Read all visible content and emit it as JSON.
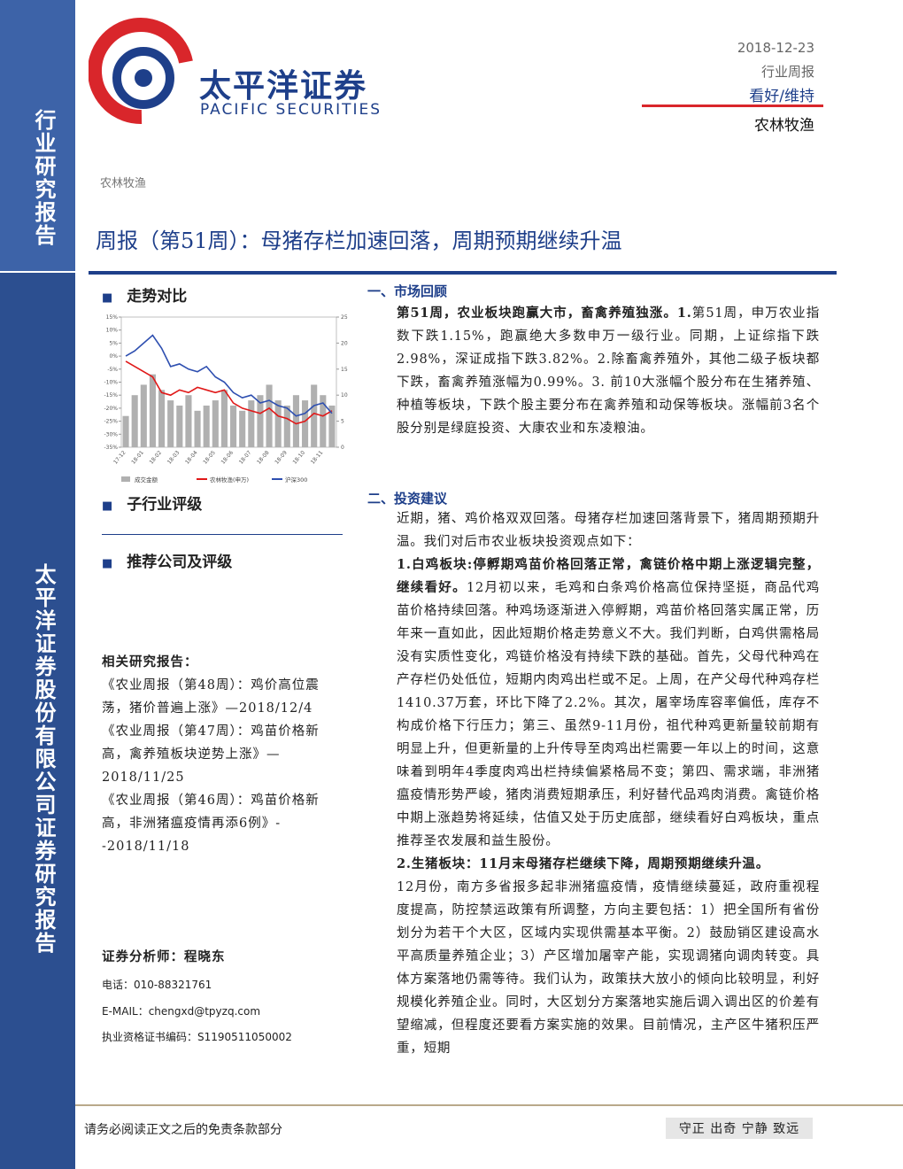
{
  "header": {
    "logo_cn": "太平洋证券",
    "logo_en": "PACIFIC SECURITIES",
    "date": "2018-12-23",
    "report_type": "行业周报",
    "rating": "看好/维持",
    "sector": "农林牧渔"
  },
  "sidebar": {
    "top": "行业研究报告",
    "bottom": "太平洋证券股份有限公司证券研究报告"
  },
  "breadcrumb": "农林牧渔",
  "title": "周报（第51周）：母猪存栏加速回落，周期预期继续升温",
  "left": {
    "trend_heading": "走势对比",
    "sub_industry_heading": "子行业评级",
    "recommend_heading": "推荐公司及评级",
    "related": {
      "heading": "相关研究报告：",
      "items": [
        "《农业周报（第48周）：鸡价高位震荡，猪价普遍上涨》—2018/12/4",
        "《农业周报（第47周）：鸡苗价格新高，禽养殖板块逆势上涨》—2018/11/25",
        "《农业周报（第46周）：鸡苗价格新高，非洲猪瘟疫情再添6例》--2018/11/18"
      ]
    },
    "analyst": {
      "label": "证券分析师：程晓东",
      "phone": "电话：010-88321761",
      "email": "E-MAIL：chengxd@tpyzq.com",
      "cert": "执业资格证书编码：S1190511050002"
    }
  },
  "chart_data": {
    "type": "line",
    "categories": [
      "17-12",
      null,
      "18-01",
      null,
      "18-02",
      null,
      "18-03",
      null,
      "18-04",
      null,
      "18-05",
      null,
      "18-06",
      null,
      "18-07",
      null,
      "18-08",
      null,
      "18-09",
      null,
      "18-10",
      null,
      "18-11",
      null
    ],
    "series": [
      {
        "name": "成交金额",
        "type": "bar",
        "axis": "y2",
        "color": "#b0b0b0",
        "values": [
          6,
          10,
          12,
          14,
          11,
          9,
          8,
          10,
          7,
          8,
          9,
          11,
          8,
          7,
          9,
          10,
          12,
          9,
          8,
          10,
          9,
          12,
          10,
          8
        ]
      },
      {
        "name": "农林牧渔(申万)",
        "color": "#e01818",
        "values": [
          -2,
          -4,
          -6,
          -8,
          -14,
          -15,
          -13,
          -14,
          -12,
          -13,
          -14,
          -13,
          -18,
          -20,
          -21,
          -22,
          -20,
          -23,
          -24,
          -26,
          -25,
          -22,
          -23,
          -21
        ]
      },
      {
        "name": "沪深300",
        "color": "#2e4fb0",
        "values": [
          0,
          2,
          5,
          8,
          3,
          -4,
          -3,
          -5,
          -6,
          -4,
          -8,
          -10,
          -14,
          -16,
          -15,
          -18,
          -17,
          -19,
          -20,
          -23,
          -22,
          -19,
          -18,
          -22
        ]
      }
    ],
    "ylim": [
      -35,
      15
    ],
    "yticks": [
      {
        "value": 15,
        "label": "15%"
      },
      {
        "value": 10,
        "label": "10%"
      },
      {
        "value": 5,
        "label": "5%"
      },
      {
        "value": 0,
        "label": "0%"
      },
      {
        "value": -5,
        "label": "-5%"
      },
      {
        "value": -10,
        "label": "-10%"
      },
      {
        "value": -15,
        "label": "-15%"
      },
      {
        "value": -20,
        "label": "-20%"
      },
      {
        "value": -25,
        "label": "-25%"
      },
      {
        "value": -30,
        "label": "-30%"
      },
      {
        "value": -35,
        "label": "-35%"
      }
    ],
    "y2lim": [
      0,
      25
    ],
    "y2ticks": [
      0,
      5,
      10,
      15,
      20,
      25
    ],
    "legend": "bottom"
  },
  "sections": [
    {
      "heading": "一、市场回顾",
      "paragraphs": [
        {
          "bold": "第51周，农业板块跑赢大市，畜禽养殖独涨。1.",
          "text": "第51周，申万农业指数下跌1.15%，跑赢绝大多数申万一级行业。同期，上证综指下跌2.98%，深证成指下跌3.82%。2.除畜禽养殖外，其他二级子板块都下跌，畜禽养殖涨幅为0.99%。3. 前10大涨幅个股分布在生猪养殖、种植等板块，下跌个股主要分布在禽养殖和动保等板块。涨幅前3名个股分别是绿庭投资、大康农业和东凌粮油。"
        }
      ]
    },
    {
      "heading": "二、投资建议",
      "intro": "近期，猪、鸡价格双双回落。母猪存栏加速回落背景下，猪周期预期升温。我们对后市农业板块投资观点如下：",
      "paragraphs": [
        {
          "bold": "1.白鸡板块:停孵期鸡苗价格回落正常，禽链价格中期上涨逻辑完整，继续看好。",
          "text": "12月初以来，毛鸡和白条鸡价格高位保持坚挺，商品代鸡苗价格持续回落。种鸡场逐渐进入停孵期，鸡苗价格回落实属正常，历年来一直如此，因此短期价格走势意义不大。我们判断，白鸡供需格局没有实质性变化，鸡链价格没有持续下跌的基础。首先，父母代种鸡在产存栏仍处低位，短期内肉鸡出栏或不足。上周，在产父母代种鸡存栏1410.37万套，环比下降了2.2%。其次，屠宰场库容率偏低，库存不构成价格下行压力；第三、虽然9-11月份，祖代种鸡更新量较前期有明显上升，但更新量的上升传导至肉鸡出栏需要一年以上的时间，这意味着到明年4季度肉鸡出栏持续偏紧格局不变；第四、需求端，非洲猪瘟疫情形势严峻，猪肉消费短期承压，利好替代品鸡肉消费。禽链价格中期上涨趋势将延续，估值又处于历史底部，继续看好白鸡板块，重点推荐圣农发展和益生股份。"
        },
        {
          "bold": "2.生猪板块：11月末母猪存栏继续下降，周期预期继续升温。",
          "text": "12月份，南方多省报多起非洲猪瘟疫情，疫情继续蔓延，政府重视程度提高，防控禁运政策有所调整，方向主要包括：1）把全国所有省份划分为若干个大区，区域内实现供需基本平衡。2）鼓励销区建设高水平高质量养殖企业；3）产区增加屠宰产能，实现调猪向调肉转变。具体方案落地仍需等待。我们认为，政策扶大放小的倾向比较明显，利好规模化养殖企业。同时，大区划分方案落地实施后调入调出区的价差有望缩减，但程度还要看方案实施的效果。目前情况，主产区牛猪积压严重，短期"
        }
      ]
    }
  ],
  "footer": {
    "left": "请务必阅读正文之后的免责条款部分",
    "right": "守正 出奇 宁静 致远"
  }
}
